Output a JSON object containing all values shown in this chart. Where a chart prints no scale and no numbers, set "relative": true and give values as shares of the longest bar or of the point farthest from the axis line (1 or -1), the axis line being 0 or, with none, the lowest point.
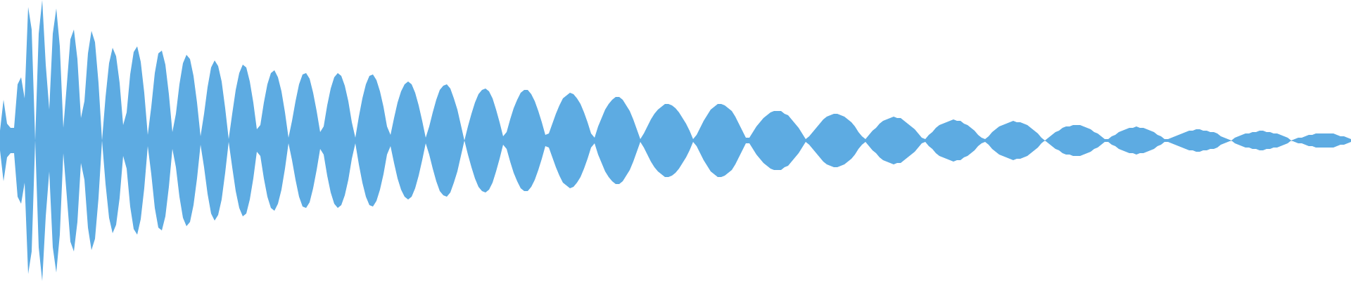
{
  "chart_data": {
    "type": "area",
    "relative": true,
    "categories": [
      null,
      null,
      null,
      null,
      null,
      null,
      null,
      null,
      null,
      null,
      null,
      null,
      null,
      null,
      null,
      null,
      null,
      null,
      null,
      null,
      null,
      null,
      null,
      null,
      null,
      null,
      null,
      null,
      null,
      null,
      null,
      null,
      null,
      null,
      null,
      null,
      null,
      null,
      null,
      null,
      null,
      null,
      null,
      null,
      null,
      null,
      null,
      null,
      null,
      null,
      null,
      null,
      null,
      null,
      null,
      null,
      null,
      null,
      null,
      null,
      null,
      null,
      null,
      null,
      null,
      null,
      null,
      null,
      null,
      null,
      null,
      null,
      null,
      null,
      null,
      null,
      null,
      null,
      null,
      null,
      null,
      null,
      null,
      null,
      null,
      null,
      null,
      null,
      null,
      null,
      null,
      null,
      null,
      null,
      null,
      null,
      null,
      null,
      null,
      null,
      null,
      null,
      null,
      null,
      null,
      null,
      null,
      null,
      null,
      null,
      null,
      null,
      null,
      null,
      null,
      null,
      null,
      null,
      null,
      null,
      null,
      null,
      null,
      null,
      null,
      null,
      null,
      null,
      null,
      null,
      null,
      null,
      null,
      null,
      null,
      null,
      null,
      null,
      null,
      null,
      null,
      null,
      null,
      null,
      null,
      null,
      null,
      null,
      null,
      null,
      null,
      null,
      null,
      null,
      null,
      null,
      null,
      null,
      null,
      null,
      null,
      null,
      null,
      null,
      null,
      null,
      null,
      null,
      null,
      null,
      null,
      null,
      null,
      null,
      null,
      null,
      null,
      null,
      null,
      null,
      null,
      null,
      null,
      null,
      null,
      null,
      null,
      null,
      null,
      null,
      null,
      null,
      null,
      null,
      null,
      null,
      null,
      null,
      null,
      null,
      null,
      null,
      null,
      null,
      null,
      null,
      null,
      null,
      null,
      null,
      null,
      null,
      null,
      null,
      null,
      null,
      null,
      null,
      null,
      null,
      null,
      null,
      null,
      null,
      null,
      null,
      null,
      null,
      null,
      null,
      null,
      null,
      null,
      null,
      null,
      null,
      null,
      null,
      null,
      null,
      null,
      null,
      null,
      null,
      null,
      null,
      null,
      null,
      null,
      null,
      null,
      null,
      null,
      null,
      null,
      null,
      null,
      null,
      null,
      null,
      null,
      null,
      null,
      null,
      null,
      null,
      null,
      null,
      null,
      null,
      null,
      null,
      null,
      null,
      null,
      null,
      null,
      null,
      null,
      null,
      null,
      null,
      null,
      null,
      null,
      null,
      null,
      null,
      null,
      null,
      null,
      null,
      null,
      null,
      null,
      null,
      null,
      null,
      null,
      null,
      null,
      null,
      null,
      null,
      null,
      null,
      null,
      null,
      null,
      null,
      null,
      null,
      null,
      null,
      null,
      null,
      null,
      null,
      null,
      null,
      null,
      null,
      null,
      null,
      null,
      null,
      null,
      null,
      null,
      null,
      null,
      null,
      null,
      null,
      null,
      null,
      null,
      null,
      null,
      null,
      null,
      null,
      null,
      null,
      null,
      null,
      null,
      null,
      null,
      null,
      null,
      null,
      null,
      null,
      null,
      null,
      null,
      null,
      null,
      null,
      null,
      null,
      null,
      null,
      null,
      null,
      null,
      null,
      null,
      null,
      null,
      null,
      null,
      null,
      null,
      null,
      null,
      null,
      null,
      null,
      null,
      null,
      null,
      null,
      null
    ],
    "series": [
      {
        "color": "#5dabe2",
        "values": [
          0.07,
          0.29,
          0.12,
          0.09,
          0.09,
          0.4,
          0.45,
          0.3,
          0.95,
          0.79,
          0,
          0.76,
          1,
          0.54,
          0.22,
          0.76,
          0.94,
          0.67,
          0.09,
          0.4,
          0.72,
          0.79,
          0.58,
          0.16,
          0.28,
          0.62,
          0.78,
          0.7,
          0.41,
          0,
          0.31,
          0.55,
          0.66,
          0.6,
          0.41,
          0.11,
          0.2,
          0.47,
          0.63,
          0.67,
          0.56,
          0.34,
          0.04,
          0.24,
          0.48,
          0.62,
          0.64,
          0.54,
          0.33,
          0.06,
          0.19,
          0.4,
          0.55,
          0.61,
          0.58,
          0.46,
          0.27,
          0.03,
          0.19,
          0.38,
          0.52,
          0.57,
          0.53,
          0.42,
          0.23,
          0.01,
          0.19,
          0.36,
          0.48,
          0.54,
          0.52,
          0.42,
          0.27,
          0.08,
          0.11,
          0.27,
          0.4,
          0.48,
          0.5,
          0.45,
          0.35,
          0.2,
          0.02,
          0.14,
          0.28,
          0.4,
          0.47,
          0.48,
          0.44,
          0.34,
          0.21,
          0.06,
          0.1,
          0.25,
          0.37,
          0.45,
          0.48,
          0.46,
          0.39,
          0.28,
          0.13,
          0.02,
          0.17,
          0.3,
          0.4,
          0.46,
          0.47,
          0.43,
          0.35,
          0.24,
          0.1,
          0.04,
          0.16,
          0.27,
          0.35,
          0.4,
          0.42,
          0.4,
          0.34,
          0.25,
          0.14,
          0.02,
          0.1,
          0.2,
          0.29,
          0.36,
          0.39,
          0.4,
          0.37,
          0.3,
          0.22,
          0.11,
          0,
          0.1,
          0.19,
          0.27,
          0.33,
          0.36,
          0.37,
          0.35,
          0.3,
          0.22,
          0.13,
          0.03,
          0.06,
          0.15,
          0.23,
          0.29,
          0.34,
          0.36,
          0.36,
          0.33,
          0.28,
          0.21,
          0.13,
          0.04,
          0.05,
          0.12,
          0.19,
          0.25,
          0.3,
          0.32,
          0.34,
          0.33,
          0.3,
          0.26,
          0.2,
          0.13,
          0.05,
          0.02,
          0.1,
          0.16,
          0.22,
          0.26,
          0.29,
          0.31,
          0.31,
          0.29,
          0.25,
          0.21,
          0.15,
          0.08,
          0.01,
          0.05,
          0.1,
          0.15,
          0.19,
          0.22,
          0.24,
          0.26,
          0.26,
          0.25,
          0.23,
          0.2,
          0.16,
          0.12,
          0.07,
          0.01,
          0.04,
          0.09,
          0.14,
          0.18,
          0.22,
          0.24,
          0.26,
          0.26,
          0.25,
          0.23,
          0.21,
          0.17,
          0.12,
          0.07,
          0.02,
          0.02,
          0.06,
          0.1,
          0.13,
          0.16,
          0.18,
          0.2,
          0.21,
          0.21,
          0.21,
          0.19,
          0.18,
          0.15,
          0.12,
          0.09,
          0.05,
          0.01,
          0.03,
          0.06,
          0.09,
          0.12,
          0.15,
          0.17,
          0.18,
          0.19,
          0.19,
          0.18,
          0.17,
          0.15,
          0.13,
          0.1,
          0.06,
          0.03,
          0.01,
          0.04,
          0.07,
          0.09,
          0.12,
          0.14,
          0.15,
          0.16,
          0.17,
          0.16,
          0.16,
          0.14,
          0.12,
          0.1,
          0.08,
          0.05,
          0.02,
          0.01,
          0.04,
          0.06,
          0.09,
          0.11,
          0.12,
          0.13,
          0.14,
          0.15,
          0.14,
          0.14,
          0.12,
          0.11,
          0.09,
          0.07,
          0.04,
          0.02,
          0.01,
          0.03,
          0.06,
          0.08,
          0.1,
          0.11,
          0.12,
          0.13,
          0.14,
          0.13,
          0.13,
          0.12,
          0.11,
          0.09,
          0.07,
          0.05,
          0.02,
          0,
          0.02,
          0.04,
          0.06,
          0.07,
          0.09,
          0.1,
          0.1,
          0.11,
          0.11,
          0.11,
          0.1,
          0.09,
          0.08,
          0.06,
          0.05,
          0.03,
          0.01,
          0.01,
          0.03,
          0.04,
          0.06,
          0.07,
          0.08,
          0.09,
          0.09,
          0.1,
          0.09,
          0.09,
          0.08,
          0.07,
          0.06,
          0.04,
          0.03,
          0.01,
          0.01,
          0.02,
          0.03,
          0.04,
          0.05,
          0.06,
          0.07,
          0.07,
          0.08,
          0.08,
          0.07,
          0.07,
          0.06,
          0.06,
          0.05,
          0.03,
          0.02,
          0.01,
          0,
          0.02,
          0.03,
          0.04,
          0.05,
          0.05,
          0.06,
          0.06,
          0.07,
          0.07,
          0.06,
          0.06,
          0.05,
          0.05,
          0.04,
          0.03,
          0.02,
          0,
          0.01,
          0.02,
          0.02,
          0.03,
          0.04,
          0.04,
          0.05,
          0.05,
          0.05,
          0.05,
          0.05,
          0.05,
          0.04,
          0.03,
          0.03,
          0.02,
          0.01
        ]
      },
      {
        "color": "#5dabe2",
        "values": [
          -0.07,
          -0.29,
          -0.12,
          -0.09,
          -0.09,
          -0.4,
          -0.45,
          -0.3,
          -0.95,
          -0.79,
          0,
          -0.76,
          -1,
          -0.54,
          -0.22,
          -0.76,
          -0.94,
          -0.67,
          -0.09,
          -0.4,
          -0.72,
          -0.79,
          -0.58,
          -0.16,
          -0.28,
          -0.62,
          -0.78,
          -0.7,
          -0.41,
          0,
          -0.31,
          -0.55,
          -0.66,
          -0.6,
          -0.41,
          -0.11,
          -0.2,
          -0.47,
          -0.63,
          -0.67,
          -0.56,
          -0.34,
          -0.04,
          -0.24,
          -0.48,
          -0.62,
          -0.64,
          -0.54,
          -0.33,
          -0.06,
          -0.19,
          -0.4,
          -0.55,
          -0.61,
          -0.58,
          -0.46,
          -0.27,
          -0.03,
          -0.19,
          -0.38,
          -0.52,
          -0.57,
          -0.53,
          -0.42,
          -0.23,
          -0.01,
          -0.19,
          -0.36,
          -0.48,
          -0.54,
          -0.52,
          -0.42,
          -0.27,
          -0.08,
          -0.11,
          -0.27,
          -0.4,
          -0.48,
          -0.5,
          -0.45,
          -0.35,
          -0.2,
          -0.02,
          -0.14,
          -0.28,
          -0.4,
          -0.47,
          -0.48,
          -0.44,
          -0.34,
          -0.21,
          -0.06,
          -0.1,
          -0.25,
          -0.37,
          -0.45,
          -0.48,
          -0.46,
          -0.39,
          -0.28,
          -0.13,
          -0.02,
          -0.17,
          -0.3,
          -0.4,
          -0.46,
          -0.47,
          -0.43,
          -0.35,
          -0.24,
          -0.1,
          -0.04,
          -0.16,
          -0.27,
          -0.35,
          -0.4,
          -0.42,
          -0.4,
          -0.34,
          -0.25,
          -0.14,
          -0.02,
          -0.1,
          -0.2,
          -0.29,
          -0.36,
          -0.39,
          -0.4,
          -0.37,
          -0.3,
          -0.22,
          -0.11,
          0,
          -0.1,
          -0.19,
          -0.27,
          -0.33,
          -0.36,
          -0.37,
          -0.35,
          -0.3,
          -0.22,
          -0.13,
          -0.03,
          -0.06,
          -0.15,
          -0.23,
          -0.29,
          -0.34,
          -0.36,
          -0.36,
          -0.33,
          -0.28,
          -0.21,
          -0.13,
          -0.04,
          -0.05,
          -0.12,
          -0.19,
          -0.25,
          -0.3,
          -0.32,
          -0.34,
          -0.33,
          -0.3,
          -0.26,
          -0.2,
          -0.13,
          -0.05,
          -0.02,
          -0.1,
          -0.16,
          -0.22,
          -0.26,
          -0.29,
          -0.31,
          -0.31,
          -0.29,
          -0.25,
          -0.21,
          -0.15,
          -0.08,
          -0.01,
          -0.05,
          -0.1,
          -0.15,
          -0.19,
          -0.22,
          -0.24,
          -0.26,
          -0.26,
          -0.25,
          -0.23,
          -0.2,
          -0.16,
          -0.12,
          -0.07,
          -0.01,
          -0.04,
          -0.09,
          -0.14,
          -0.18,
          -0.22,
          -0.24,
          -0.26,
          -0.26,
          -0.25,
          -0.23,
          -0.21,
          -0.17,
          -0.12,
          -0.07,
          -0.02,
          -0.02,
          -0.06,
          -0.1,
          -0.13,
          -0.16,
          -0.18,
          -0.2,
          -0.21,
          -0.21,
          -0.21,
          -0.19,
          -0.18,
          -0.15,
          -0.12,
          -0.09,
          -0.05,
          -0.01,
          -0.03,
          -0.06,
          -0.09,
          -0.12,
          -0.15,
          -0.17,
          -0.18,
          -0.19,
          -0.19,
          -0.18,
          -0.17,
          -0.15,
          -0.13,
          -0.1,
          -0.06,
          -0.03,
          -0.01,
          -0.04,
          -0.07,
          -0.09,
          -0.12,
          -0.14,
          -0.15,
          -0.16,
          -0.17,
          -0.16,
          -0.16,
          -0.14,
          -0.12,
          -0.1,
          -0.08,
          -0.05,
          -0.02,
          -0.01,
          -0.04,
          -0.06,
          -0.09,
          -0.11,
          -0.12,
          -0.13,
          -0.14,
          -0.15,
          -0.14,
          -0.14,
          -0.12,
          -0.11,
          -0.09,
          -0.07,
          -0.04,
          -0.02,
          -0.01,
          -0.03,
          -0.06,
          -0.08,
          -0.1,
          -0.11,
          -0.12,
          -0.13,
          -0.14,
          -0.13,
          -0.13,
          -0.12,
          -0.11,
          -0.09,
          -0.07,
          -0.05,
          -0.02,
          0,
          -0.02,
          -0.04,
          -0.06,
          -0.07,
          -0.09,
          -0.1,
          -0.1,
          -0.11,
          -0.11,
          -0.11,
          -0.1,
          -0.09,
          -0.08,
          -0.06,
          -0.05,
          -0.03,
          -0.01,
          -0.01,
          -0.03,
          -0.04,
          -0.06,
          -0.07,
          -0.08,
          -0.09,
          -0.09,
          -0.1,
          -0.09,
          -0.09,
          -0.08,
          -0.07,
          -0.06,
          -0.04,
          -0.03,
          -0.01,
          -0.01,
          -0.02,
          -0.03,
          -0.04,
          -0.05,
          -0.06,
          -0.07,
          -0.07,
          -0.08,
          -0.08,
          -0.07,
          -0.07,
          -0.06,
          -0.06,
          -0.05,
          -0.03,
          -0.02,
          -0.01,
          0,
          -0.02,
          -0.03,
          -0.04,
          -0.05,
          -0.05,
          -0.06,
          -0.06,
          -0.07,
          -0.07,
          -0.06,
          -0.06,
          -0.05,
          -0.05,
          -0.04,
          -0.03,
          -0.02,
          0,
          -0.01,
          -0.02,
          -0.02,
          -0.03,
          -0.04,
          -0.04,
          -0.05,
          -0.05,
          -0.05,
          -0.05,
          -0.05,
          -0.05,
          -0.04,
          -0.03,
          -0.03,
          -0.02,
          -0.01
        ]
      }
    ]
  }
}
